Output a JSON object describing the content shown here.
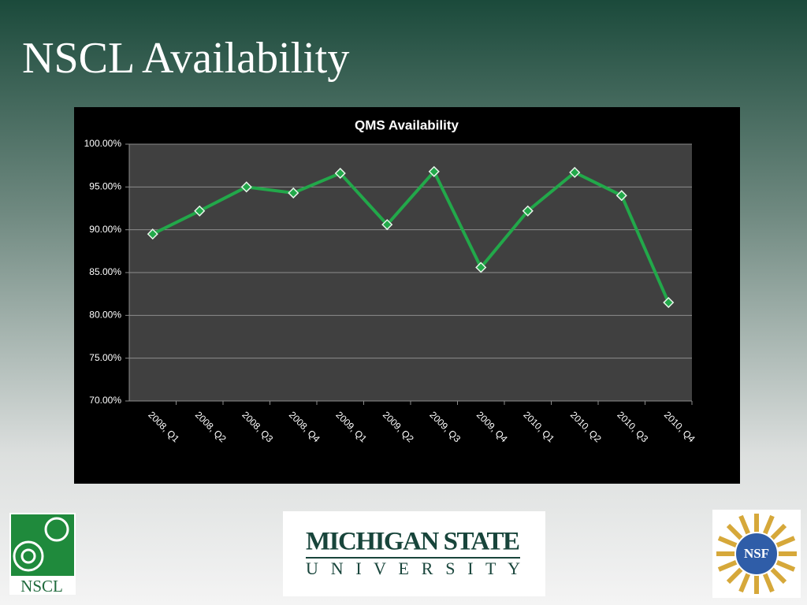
{
  "title": "NSCL Availability",
  "chart_data": {
    "type": "line",
    "title": "QMS Availability",
    "categories": [
      "2008, Q1",
      "2008, Q2",
      "2008, Q3",
      "2008, Q4",
      "2009, Q1",
      "2009, Q2",
      "2009, Q3",
      "2009, Q4",
      "2010, Q1",
      "2010, Q2",
      "2010, Q3",
      "2010, Q4"
    ],
    "series": [
      {
        "color": "#22a84a",
        "values": [
          89.5,
          92.2,
          95.0,
          94.3,
          96.6,
          90.6,
          96.8,
          85.6,
          92.2,
          96.7,
          94.0,
          81.5
        ]
      }
    ],
    "ylim": [
      70,
      100
    ],
    "yticks": [
      {
        "value": 70,
        "label": "70.00%"
      },
      {
        "value": 75,
        "label": "75.00%"
      },
      {
        "value": 80,
        "label": "80.00%"
      },
      {
        "value": 85,
        "label": "85.00%"
      },
      {
        "value": 90,
        "label": "90.00%"
      },
      {
        "value": 95,
        "label": "95.00%"
      },
      {
        "value": 100,
        "label": "100.00%"
      }
    ],
    "grid": true
  },
  "logos": {
    "nscl": "NSCL",
    "msu_line1": "MICHIGAN STATE",
    "msu_line2": "U N I V E R S I T Y",
    "nsf": "NSF"
  }
}
